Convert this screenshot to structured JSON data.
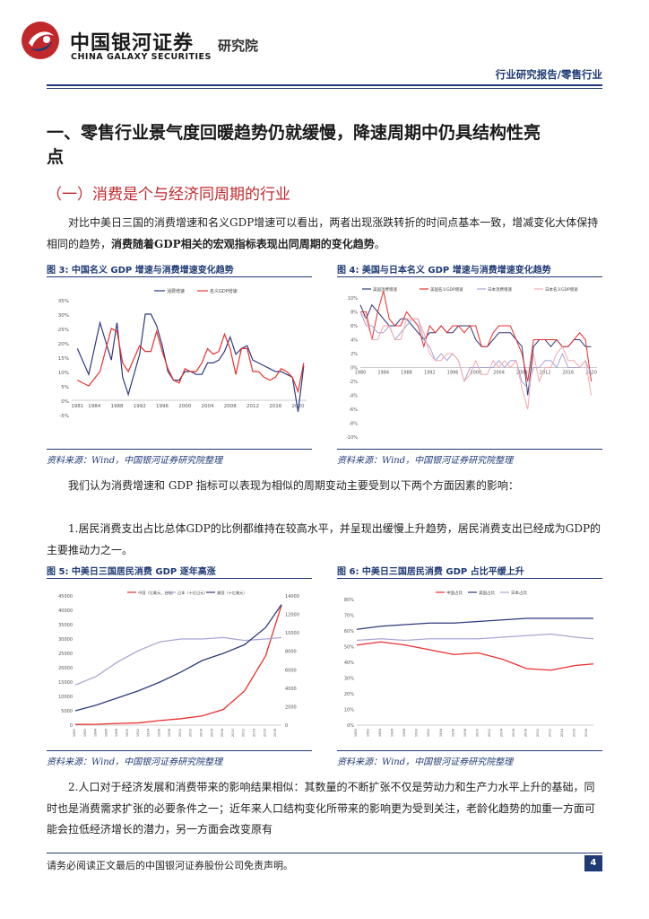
{
  "header": {
    "company_cn": "中国银河证券",
    "company_en": "CHINA GALAXY SECURITIES",
    "institute": "研究院",
    "report_type": "行业研究报告/零售行业"
  },
  "section": {
    "title": "一、零售行业景气度回暖趋势仍就缓慢，降速周期中仍具结构性亮点",
    "subtitle": "（一）消费是个与经济同周期的行业"
  },
  "paragraphs": {
    "p1_normal": "对比中美日三国的消费增速和名义GDP增速可以看出，两者出现涨跌转折的时间点基本一致，增减变化大体保持相同的趋势，",
    "p1_bold": "消费随着GDP相关的宏观指标表现出同周期的变化趋势",
    "p1_end": "。",
    "p2": "我们认为消费增速和 GDP 指标可以表现为相似的周期变动主要受到以下两个方面因素的影响：",
    "p3": "1.居民消费支出占比总体GDP的比例都维持在较高水平，并呈现出缓慢上升趋势，居民消费支出已经成为GDP的主要推动力之一。",
    "p4": "2.人口对于经济发展和消费带来的影响结果相似：其数量的不断扩张不仅是劳动力和生产力水平上升的基础，同时也是消费需求扩张的必要条件之一；近年来人口结构变化所带来的影响更为受到关注，老龄化趋势的加重一方面可能会拉低经济增长的潜力，另一方面会改变原有"
  },
  "figures": {
    "fig3": {
      "caption": "图 3:  中国名义 GDP 增速与消费增速变化趋势",
      "source": "资料来源：Wind，中国银河证券研究院整理"
    },
    "fig4": {
      "caption": "图 4:  美国与日本名义 GDP 增速与消费增速变化趋势",
      "source": "资料来源：Wind，中国银河证券研究院整理"
    },
    "fig5": {
      "caption": "图 5:  中美日三国居民消费 GDP 逐年高涨",
      "source": "资料来源：Wind，中国银河证券研究院整理"
    },
    "fig6": {
      "caption": "图 6:  中美日三国居民消费 GDP 占比平缓上升",
      "source": "资料来源：Wind，中国银河证券研究院整理"
    }
  },
  "footer": {
    "disclaimer": "请务必阅读正文最后的中国银河证券股份公司免责声明。",
    "page": "4"
  },
  "colors": {
    "navy": "#1f3a75",
    "red": "#e8302e",
    "lavender": "#a8a6d4",
    "pink": "#f4a9b0",
    "brand_red": "#c0282c"
  },
  "chart_data": [
    {
      "type": "line",
      "id": "fig3",
      "x": [
        1981,
        1983,
        1985,
        1987,
        1988,
        1989,
        1990,
        1992,
        1993,
        1994,
        1995,
        1996,
        1997,
        1998,
        1999,
        2000,
        2001,
        2002,
        2003,
        2004,
        2005,
        2006,
        2007,
        2008,
        2009,
        2010,
        2011,
        2012,
        2013,
        2014,
        2015,
        2016,
        2017,
        2018,
        2019,
        2020,
        2021
      ],
      "xticks": [
        "1981",
        "1984",
        "1988",
        "1992",
        "1996",
        "2000",
        "2004",
        "2008",
        "2012",
        "2016",
        "2020"
      ],
      "ylim": [
        -5,
        35
      ],
      "yticks": [
        "-5%",
        "0%",
        "5%",
        "10%",
        "15%",
        "20%",
        "25%",
        "30%",
        "35%"
      ],
      "series": [
        {
          "name": "消费增速",
          "color": "#2e3a7c",
          "values": [
            18,
            9,
            27,
            14,
            27,
            8,
            2,
            16,
            30,
            30,
            26,
            19,
            10,
            7,
            7,
            10,
            10,
            9,
            9,
            13,
            13,
            14,
            17,
            22,
            16,
            18,
            19,
            14,
            13,
            12,
            11,
            10,
            10,
            9,
            8,
            -4,
            12
          ]
        },
        {
          "name": "名义GDP增速",
          "color": "#e8302e",
          "values": [
            7,
            5,
            10,
            25,
            24,
            13,
            10,
            19,
            17,
            17,
            24,
            17,
            11,
            7,
            6,
            11,
            10,
            10,
            13,
            18,
            16,
            17,
            23,
            18,
            9,
            18,
            18,
            10,
            10,
            8,
            7,
            8,
            11,
            10,
            8,
            3,
            13
          ]
        }
      ]
    },
    {
      "type": "line",
      "id": "fig4",
      "xticks": [
        "1980",
        "1984",
        "1988",
        "1992",
        "1996",
        "2000",
        "2004",
        "2008",
        "2012",
        "2016",
        "2020"
      ],
      "ylim": [
        -10,
        10
      ],
      "yticks": [
        "-10%",
        "-8%",
        "-6%",
        "-4%",
        "-2%",
        "0%",
        "2%",
        "4%",
        "6%",
        "8%",
        "10%"
      ],
      "series": [
        {
          "name": "美国消费增速",
          "color": "#2e3a7c"
        },
        {
          "name": "美国名义GDP增速",
          "color": "#e8302e"
        },
        {
          "name": "日本消费增速",
          "color": "#a8a6d4"
        },
        {
          "name": "日本名义GDP增速",
          "color": "#f4a9b0"
        }
      ]
    },
    {
      "type": "line",
      "id": "fig5",
      "x": [
        1980,
        1984,
        1988,
        1992,
        1996,
        2000,
        2004,
        2008,
        2012,
        2016,
        2019
      ],
      "ylim_left": [
        0,
        45000
      ],
      "ylim_right": [
        0,
        14000
      ],
      "yticks_left": [
        "0",
        "5000",
        "10000",
        "15000",
        "20000",
        "25000",
        "30000",
        "35000",
        "40000",
        "45000"
      ],
      "yticks_right": [
        "0",
        "2000",
        "4000",
        "6000",
        "8000",
        "10000",
        "12000",
        "14000"
      ],
      "series": [
        {
          "name": "中国（亿美元，右轴）",
          "color": "#e8302e",
          "values": [
            80,
            100,
            180,
            250,
            500,
            700,
            1000,
            1700,
            3700,
            7500,
            13000
          ]
        },
        {
          "name": "日本（十亿日元）",
          "color": "#a8a6d4",
          "values": [
            14000,
            17000,
            22000,
            26000,
            29000,
            30000,
            30000,
            30500,
            29500,
            30000,
            30500
          ]
        },
        {
          "name": "美国（十亿美元）",
          "color": "#2e3a7c",
          "values": [
            5000,
            7000,
            9500,
            12000,
            15000,
            18500,
            22500,
            25000,
            28000,
            34000,
            42000
          ]
        }
      ]
    },
    {
      "type": "line",
      "id": "fig6",
      "x": [
        1980,
        1984,
        1988,
        1992,
        1996,
        2000,
        2004,
        2008,
        2012,
        2016,
        2019
      ],
      "ylim": [
        0,
        80
      ],
      "yticks": [
        "0%",
        "10%",
        "20%",
        "30%",
        "40%",
        "50%",
        "60%",
        "70%",
        "80%"
      ],
      "series": [
        {
          "name": "中国占比",
          "color": "#e8302e",
          "values": [
            51,
            53,
            51,
            48,
            45,
            46,
            42,
            36,
            35,
            38,
            39
          ]
        },
        {
          "name": "美国占比",
          "color": "#2e3a7c",
          "values": [
            61,
            63,
            64,
            65,
            65,
            66,
            67,
            68,
            68,
            68,
            68
          ]
        },
        {
          "name": "日本占比",
          "color": "#a8a6d4",
          "values": [
            54,
            55,
            54,
            55,
            55,
            55,
            56,
            57,
            58,
            56,
            55
          ]
        }
      ]
    }
  ]
}
